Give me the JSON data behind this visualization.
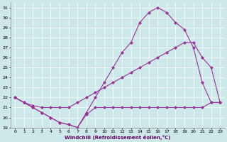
{
  "xlabel": "Windchill (Refroidissement éolien,°C)",
  "bg_color": "#cce8e8",
  "line_color": "#993399",
  "grid_color": "#ffffff",
  "xlim": [
    -0.5,
    23.5
  ],
  "ylim": [
    19,
    31.5
  ],
  "xticks": [
    0,
    1,
    2,
    3,
    4,
    5,
    6,
    7,
    8,
    9,
    10,
    11,
    12,
    13,
    14,
    15,
    16,
    17,
    18,
    19,
    20,
    21,
    22,
    23
  ],
  "yticks": [
    19,
    20,
    21,
    22,
    23,
    24,
    25,
    26,
    27,
    28,
    29,
    30,
    31
  ],
  "line1_x": [
    0,
    1,
    2,
    3,
    4,
    5,
    6,
    7,
    8,
    9,
    10,
    11,
    12,
    13,
    14,
    15,
    16,
    17,
    18,
    19,
    20,
    21,
    22,
    23
  ],
  "line1_y": [
    22,
    21.5,
    21,
    20.5,
    20,
    19.5,
    19.3,
    19,
    20.3,
    21,
    21,
    21,
    21,
    21,
    21,
    21,
    21,
    21,
    21,
    21,
    21,
    21,
    21.5,
    21.5
  ],
  "line2_x": [
    0,
    1,
    2,
    3,
    4,
    5,
    6,
    7,
    8,
    9,
    10,
    11,
    12,
    13,
    14,
    15,
    16,
    17,
    18,
    19,
    20,
    21,
    22,
    23
  ],
  "line2_y": [
    22,
    21.5,
    21.2,
    21,
    21,
    21,
    21,
    21.5,
    22,
    22.5,
    23,
    23.5,
    24,
    24.5,
    25,
    25.5,
    26,
    26.5,
    27,
    27.5,
    27.5,
    26,
    25,
    21.5
  ],
  "line3_x": [
    0,
    1,
    2,
    3,
    4,
    5,
    6,
    7,
    8,
    9,
    10,
    11,
    12,
    13,
    14,
    15,
    16,
    17,
    18,
    19,
    20,
    21,
    22,
    23
  ],
  "line3_y": [
    22,
    21.5,
    21,
    20.5,
    20,
    19.5,
    19.3,
    19,
    20.5,
    22,
    23.5,
    25,
    26.5,
    27.5,
    29.5,
    30.5,
    31,
    30.5,
    29.5,
    28.8,
    27,
    23.5,
    21.5,
    21.5
  ]
}
